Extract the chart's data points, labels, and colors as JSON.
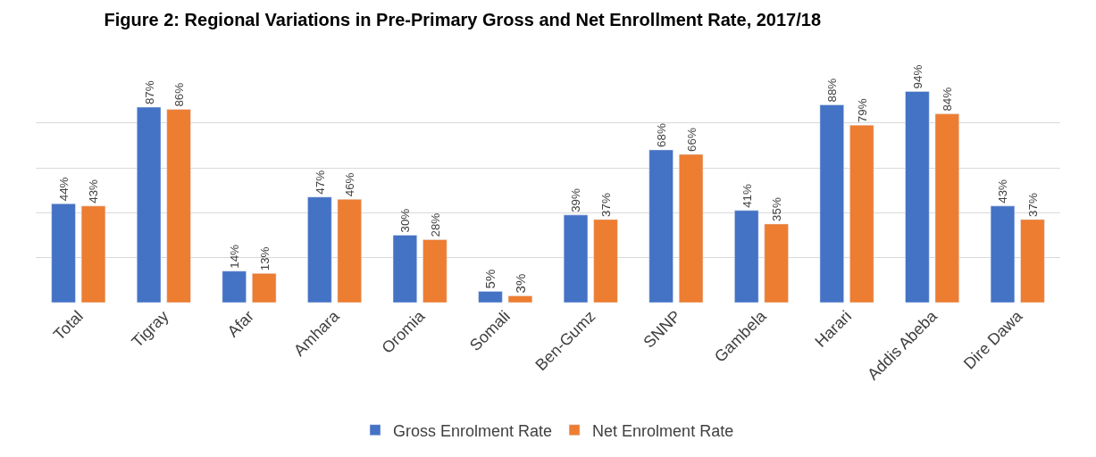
{
  "chart_data": {
    "type": "bar",
    "title": "Figure 2: Regional Variations in Pre-Primary Gross and Net Enrollment Rate, 2017/18",
    "categories": [
      "Total",
      "Tigray",
      "Afar",
      "Amhara",
      "Oromia",
      "Somali",
      "Ben-Gumz",
      "SNNP",
      "Gambela",
      "Harari",
      "Addis Abeba",
      "Dire Dawa"
    ],
    "series": [
      {
        "name": "Gross Enrolment Rate",
        "color": "#4472c4",
        "values": [
          44,
          87,
          14,
          47,
          30,
          5,
          39,
          68,
          41,
          88,
          94,
          43
        ],
        "value_labels": [
          "44%",
          "87%",
          "14%",
          "47%",
          "30%",
          "5%",
          "39%",
          "68%",
          "41%",
          "88%",
          "94%",
          "43%"
        ]
      },
      {
        "name": "Net Enrolment Rate",
        "color": "#ed7d31",
        "values": [
          43,
          86,
          13,
          46,
          28,
          3,
          37,
          66,
          35,
          79,
          84,
          37
        ],
        "value_labels": [
          "43%",
          "86%",
          "13%",
          "46%",
          "28%",
          "3%",
          "37%",
          "66%",
          "35%",
          "79%",
          "84%",
          "37%"
        ]
      }
    ],
    "tick_labels": "x",
    "grid": "y",
    "legend": "bottom"
  }
}
